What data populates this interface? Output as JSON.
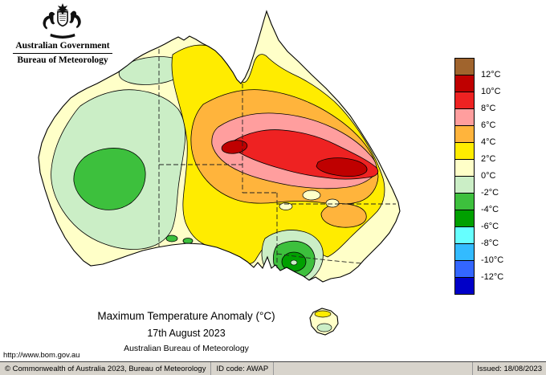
{
  "logo": {
    "government": "Australian Government",
    "bureau": "Bureau of Meteorology"
  },
  "caption": {
    "title": "Maximum Temperature Anomaly (°C)",
    "date": "17th August 2023",
    "source": "Australian Bureau of Meteorology"
  },
  "legend": {
    "labels": [
      "12°C",
      "10°C",
      "8°C",
      "6°C",
      "4°C",
      "2°C",
      "0°C",
      "-2°C",
      "-4°C",
      "-6°C",
      "-8°C",
      "-10°C",
      "-12°C"
    ],
    "colors": [
      "#a0642d",
      "#bf0000",
      "#ee2222",
      "#ff9e9e",
      "#ffb43c",
      "#ffec00",
      "#ffffc8",
      "#cbeec6",
      "#3dc03d",
      "#00a000",
      "#66ffff",
      "#33bbff",
      "#3366ff",
      "#0000c8"
    ]
  },
  "map": {
    "palette": {
      "cream": "#ffffc8",
      "yellow": "#ffec00",
      "orange": "#ffb43c",
      "pink": "#ff9e9e",
      "red": "#ee2222",
      "dark_red": "#bf0000",
      "pale_green": "#cbeec6",
      "green": "#3dc03d",
      "dark_green": "#00a000"
    }
  },
  "footer": {
    "url": "http://www.bom.gov.au",
    "copyright": "© Commonwealth of Australia 2023, Bureau of Meteorology",
    "id_code": "ID code: AWAP",
    "issued": "Issued: 18/08/2023"
  }
}
